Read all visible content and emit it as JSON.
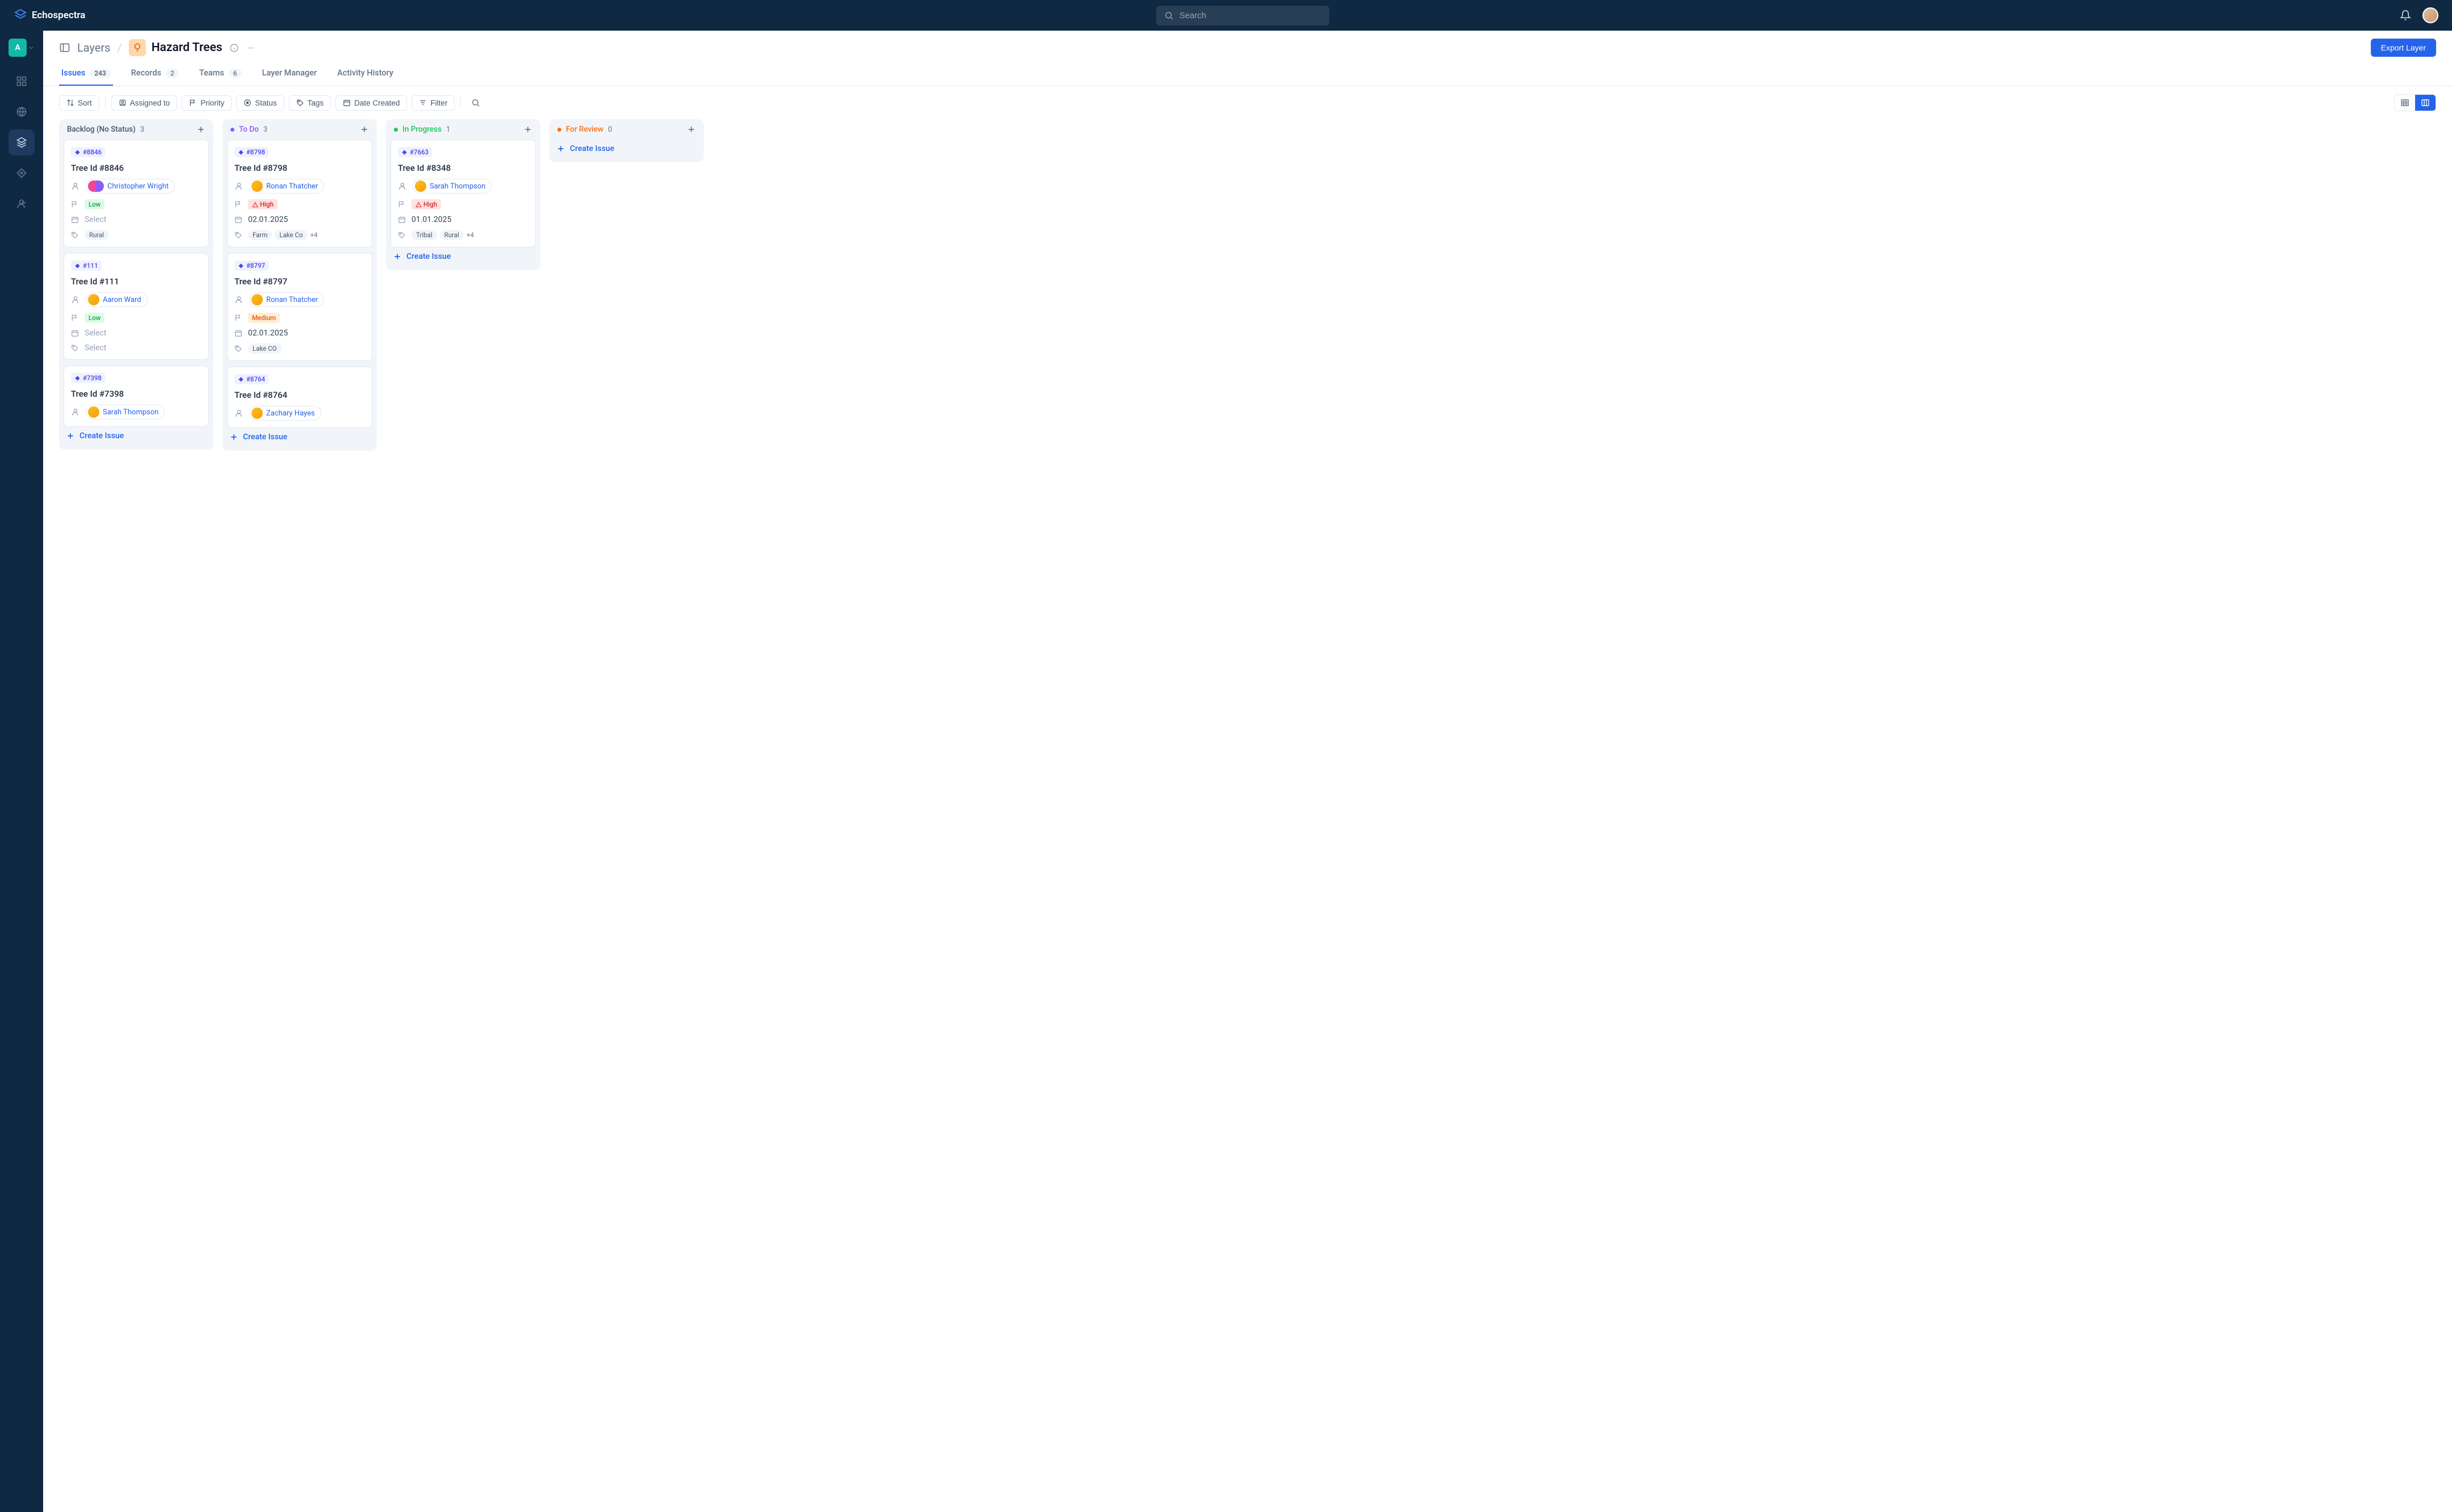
{
  "app": {
    "name": "Echospectra"
  },
  "search": {
    "placeholder": "Search"
  },
  "workspace": {
    "initial": "A"
  },
  "breadcrumb": {
    "root": "Layers",
    "title": "Hazard Trees"
  },
  "export_label": "Export Layer",
  "tabs": [
    {
      "label": "Issues",
      "count": "243",
      "active": true
    },
    {
      "label": "Records",
      "count": "2"
    },
    {
      "label": "Teams",
      "count": "6"
    },
    {
      "label": "Layer Manager"
    },
    {
      "label": "Activity History"
    }
  ],
  "toolbar": [
    {
      "icon": "sort",
      "label": "Sort"
    },
    {
      "icon": "user",
      "label": "Assigned to"
    },
    {
      "icon": "flag",
      "label": "Priority"
    },
    {
      "icon": "status",
      "label": "Status"
    },
    {
      "icon": "tag",
      "label": "Tags"
    },
    {
      "icon": "calendar",
      "label": "Date Created"
    },
    {
      "icon": "filter",
      "label": "Filter"
    }
  ],
  "create_label": "Create Issue",
  "columns": [
    {
      "title": "Backlog (No Status)",
      "count": "3",
      "color": "#64748b",
      "nodot": true,
      "cards": [
        {
          "id": "#8846",
          "title": "Tree Id #8846",
          "assignee": "Christopher Wright",
          "multi": true,
          "priority": "Low",
          "date": null,
          "select": "Select",
          "tags": [
            "Rural"
          ],
          "tag_more": null
        },
        {
          "id": "#111",
          "title": "Tree Id #111",
          "assignee": "Aaron Ward",
          "priority": "Low",
          "date": null,
          "select": "Select",
          "tags": null,
          "select2": "Select"
        },
        {
          "id": "#7398",
          "title": "Tree Id #7398",
          "assignee": "Sarah Thompson"
        }
      ]
    },
    {
      "title": "To Do",
      "count": "3",
      "color": "#8b5cf6",
      "cards": [
        {
          "id": "#8798",
          "title": "Tree Id #8798",
          "assignee": "Ronan Thatcher",
          "priority": "High",
          "date": "02.01.2025",
          "tags": [
            "Farm",
            "Lake Co"
          ],
          "tag_more": "+4"
        },
        {
          "id": "#8797",
          "title": "Tree Id #8797",
          "assignee": "Ronan Thatcher",
          "priority": "Medium",
          "date": "02.01.2025",
          "tags": [
            "Lake CO"
          ]
        },
        {
          "id": "#8764",
          "title": "Tree Id #8764",
          "assignee": "Zachary Hayes"
        }
      ]
    },
    {
      "title": "In Progress",
      "count": "1",
      "color": "#22c55e",
      "cards": [
        {
          "id": "#7663",
          "title": "Tree Id #8348",
          "assignee": "Sarah Thompson",
          "priority": "High",
          "date": "01.01.2025",
          "tags": [
            "Tribal",
            "Rural"
          ],
          "tag_more": "+4"
        }
      ]
    },
    {
      "title": "For Review",
      "count": "0",
      "color": "#f97316",
      "cards": []
    }
  ]
}
